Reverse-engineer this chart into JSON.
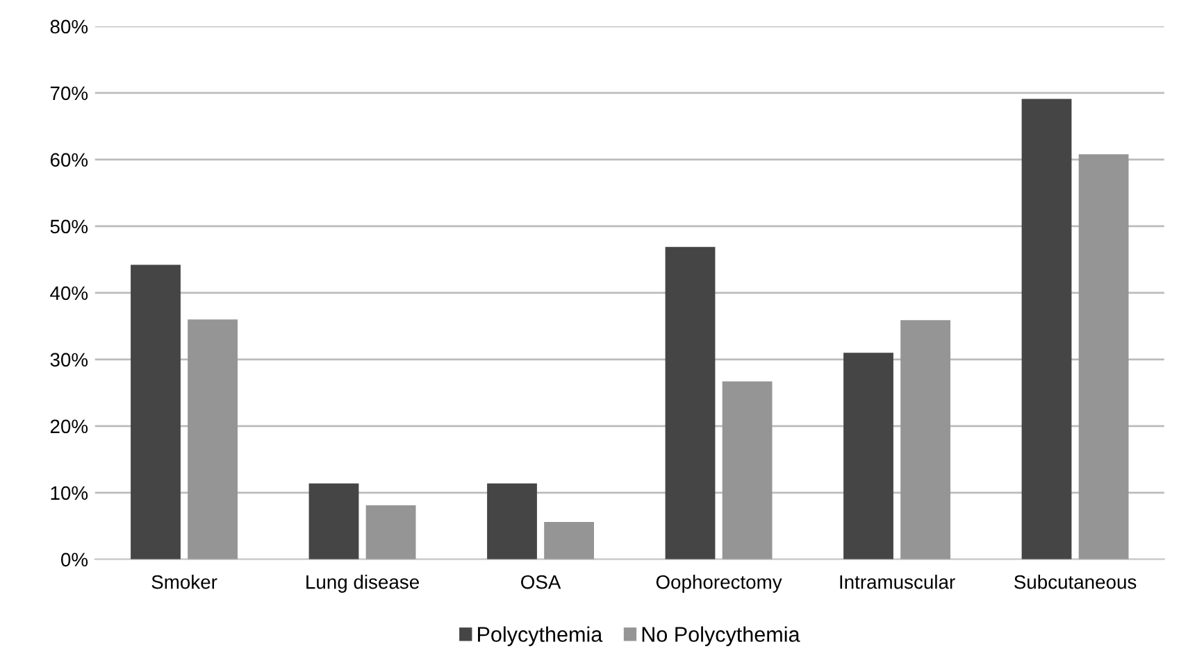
{
  "chart_data": {
    "type": "bar",
    "categories": [
      "Smoker",
      "Lung disease",
      "OSA",
      "Oophorectomy",
      "Intramuscular",
      "Subcutaneous"
    ],
    "series": [
      {
        "name": "Polycythemia",
        "color": "#454545",
        "values": [
          44.2,
          11.4,
          11.4,
          46.9,
          31.0,
          69.1
        ]
      },
      {
        "name": "No Polycythemia",
        "color": "#959595",
        "values": [
          36.0,
          8.1,
          5.6,
          26.7,
          35.9,
          60.8
        ]
      }
    ],
    "ylim": [
      0,
      80
    ],
    "yticks": [
      {
        "value": 0,
        "label": "0%"
      },
      {
        "value": 10,
        "label": "10%"
      },
      {
        "value": 20,
        "label": "20%"
      },
      {
        "value": 30,
        "label": "30%"
      },
      {
        "value": 40,
        "label": "40%"
      },
      {
        "value": 50,
        "label": "50%"
      },
      {
        "value": 60,
        "label": "60%"
      },
      {
        "value": 70,
        "label": "70%"
      },
      {
        "value": 80,
        "label": "80%"
      }
    ],
    "grid": "y",
    "legend": "bottom"
  }
}
